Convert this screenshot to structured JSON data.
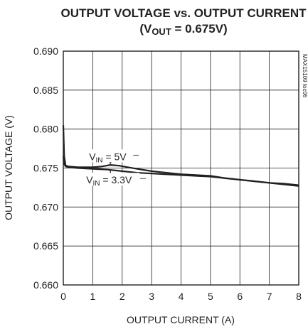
{
  "chart_data": {
    "type": "line",
    "title": "OUTPUT VOLTAGE vs. OUTPUT CURRENT",
    "subtitle_prefix": "(V",
    "subtitle_sub": "OUT",
    "subtitle_suffix": " = 0.675V)",
    "xlabel": "OUTPUT CURRENT (A)",
    "ylabel": "OUTPUT VOLTAGE (V)",
    "xlim": [
      0,
      8
    ],
    "ylim": [
      0.66,
      0.69
    ],
    "x_ticks": [
      0,
      1,
      2,
      3,
      4,
      5,
      6,
      7,
      8
    ],
    "y_ticks": [
      0.66,
      0.665,
      0.67,
      0.675,
      0.68,
      0.685,
      0.69
    ],
    "y_tick_labels": [
      "0.660",
      "0.665",
      "0.670",
      "0.675",
      "0.680",
      "0.685",
      "0.690"
    ],
    "grid": true,
    "figure_code": "MAX15109 toc06",
    "series": [
      {
        "name": "VIN = 5V",
        "x": [
          0,
          0.03,
          0.08,
          0.2,
          0.5,
          1.0,
          1.3,
          1.6,
          1.9,
          2.2,
          2.5,
          3.0,
          3.5,
          4.0,
          4.5,
          5.0,
          5.5,
          6.0,
          6.5,
          7.0,
          7.5,
          8.0
        ],
        "y": [
          0.6805,
          0.6765,
          0.6753,
          0.6752,
          0.6751,
          0.6751,
          0.6752,
          0.6754,
          0.6753,
          0.6751,
          0.6749,
          0.6746,
          0.6744,
          0.6742,
          0.6741,
          0.674,
          0.6737,
          0.6735,
          0.6733,
          0.6731,
          0.673,
          0.6728
        ]
      },
      {
        "name": "VIN = 3.3V",
        "x": [
          0,
          0.03,
          0.08,
          0.2,
          0.5,
          1.0,
          1.5,
          2.0,
          2.5,
          3.0,
          3.5,
          4.0,
          4.5,
          5.0,
          5.5,
          6.0,
          6.5,
          7.0,
          7.5,
          8.0
        ],
        "y": [
          0.6765,
          0.6755,
          0.6752,
          0.6751,
          0.675,
          0.6749,
          0.6748,
          0.6746,
          0.6744,
          0.6743,
          0.6742,
          0.6741,
          0.674,
          0.6739,
          0.6737,
          0.6735,
          0.6733,
          0.6731,
          0.6729,
          0.6727
        ]
      }
    ],
    "annotations": [
      {
        "text_main": "V",
        "text_sub": "IN",
        "text_tail": " = 5V",
        "x": 1.6,
        "y": 0.6762,
        "target_y": 0.6755
      },
      {
        "text_main": "V",
        "text_sub": "IN",
        "text_tail": " = 3.3V",
        "x": 1.6,
        "y": 0.6732,
        "target_y": 0.6745
      }
    ]
  }
}
